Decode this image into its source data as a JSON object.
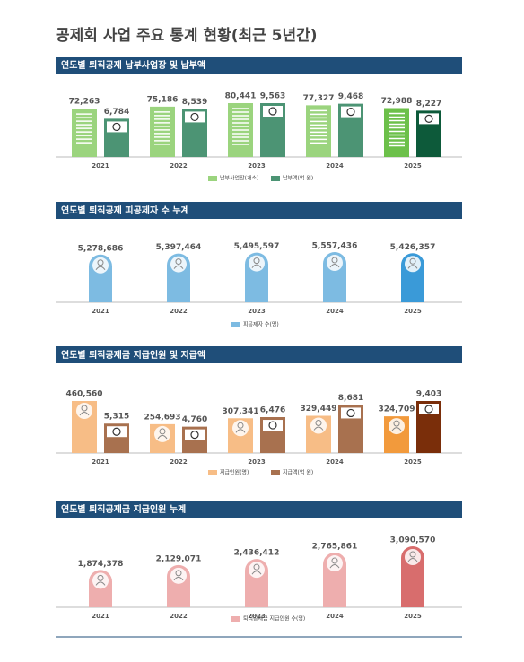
{
  "title": "공제회 사업 주요 통계 현황(최근 5년간)",
  "chart_data": [
    {
      "type": "bar",
      "title": "연도별 퇴직공제 납부사업장 및 납부액",
      "categories": [
        "2021",
        "2022",
        "2023",
        "2024",
        "2025"
      ],
      "series": [
        {
          "name": "납부사업장(개소)",
          "colors": [
            "#9bd47e",
            "#9bd47e",
            "#9bd47e",
            "#9bd47e",
            "#6cc04a"
          ],
          "values": [
            72263,
            75186,
            80441,
            77327,
            72988
          ],
          "value_labels": [
            "72,263",
            "75,186",
            "80,441",
            "77,327",
            "72,988"
          ]
        },
        {
          "name": "납부액(억 원)",
          "colors": [
            "#4c9474",
            "#4c9474",
            "#4c9474",
            "#4c9474",
            "#0d5a3a"
          ],
          "values": [
            6784,
            8539,
            9563,
            9468,
            8227
          ],
          "value_labels": [
            "6,784",
            "8,539",
            "9,563",
            "9,468",
            "8,227"
          ]
        }
      ]
    },
    {
      "type": "bar",
      "title": "연도별 퇴직공제 피공제자 수 누계",
      "categories": [
        "2021",
        "2022",
        "2023",
        "2024",
        "2025"
      ],
      "series": [
        {
          "name": "피공제자 수(명)",
          "colors": [
            "#7dbbe2",
            "#7dbbe2",
            "#7dbbe2",
            "#7dbbe2",
            "#3a9ad8"
          ],
          "values": [
            5278686,
            5397464,
            5495597,
            5557436,
            5426357
          ],
          "value_labels": [
            "5,278,686",
            "5,397,464",
            "5,495,597",
            "5,557,436",
            "5,426,357"
          ]
        }
      ]
    },
    {
      "type": "bar",
      "title": "연도별 퇴직공제금 지급인원 및 지급액",
      "categories": [
        "2021",
        "2022",
        "2023",
        "2024",
        "2025"
      ],
      "series": [
        {
          "name": "지급인원(명)",
          "colors": [
            "#f7bd86",
            "#f7bd86",
            "#f7bd86",
            "#f7bd86",
            "#f29a3c"
          ],
          "values": [
            460560,
            254693,
            307341,
            329449,
            324709
          ],
          "value_labels": [
            "460,560",
            "254,693",
            "307,341",
            "329,449",
            "324,709"
          ]
        },
        {
          "name": "지급액(억 원)",
          "colors": [
            "#a8714f",
            "#a8714f",
            "#a8714f",
            "#a8714f",
            "#7a2e0a"
          ],
          "values": [
            5315,
            4760,
            6476,
            8681,
            9403
          ],
          "value_labels": [
            "5,315",
            "4,760",
            "6,476",
            "8,681",
            "9,403"
          ]
        }
      ]
    },
    {
      "type": "bar",
      "title": "연도별 퇴직공제금 지급인원 누계",
      "categories": [
        "2021",
        "2022",
        "2023",
        "2024",
        "2025"
      ],
      "series": [
        {
          "name": "퇴직공제금 지급인원 수(명)",
          "colors": [
            "#eeaeae",
            "#eeaeae",
            "#eeaeae",
            "#eeaeae",
            "#d86d6d"
          ],
          "values": [
            1874378,
            2129071,
            2436412,
            2765861,
            3090570
          ],
          "value_labels": [
            "1,874,378",
            "2,129,071",
            "2,436,412",
            "2,765,861",
            "3,090,570"
          ]
        }
      ]
    }
  ]
}
